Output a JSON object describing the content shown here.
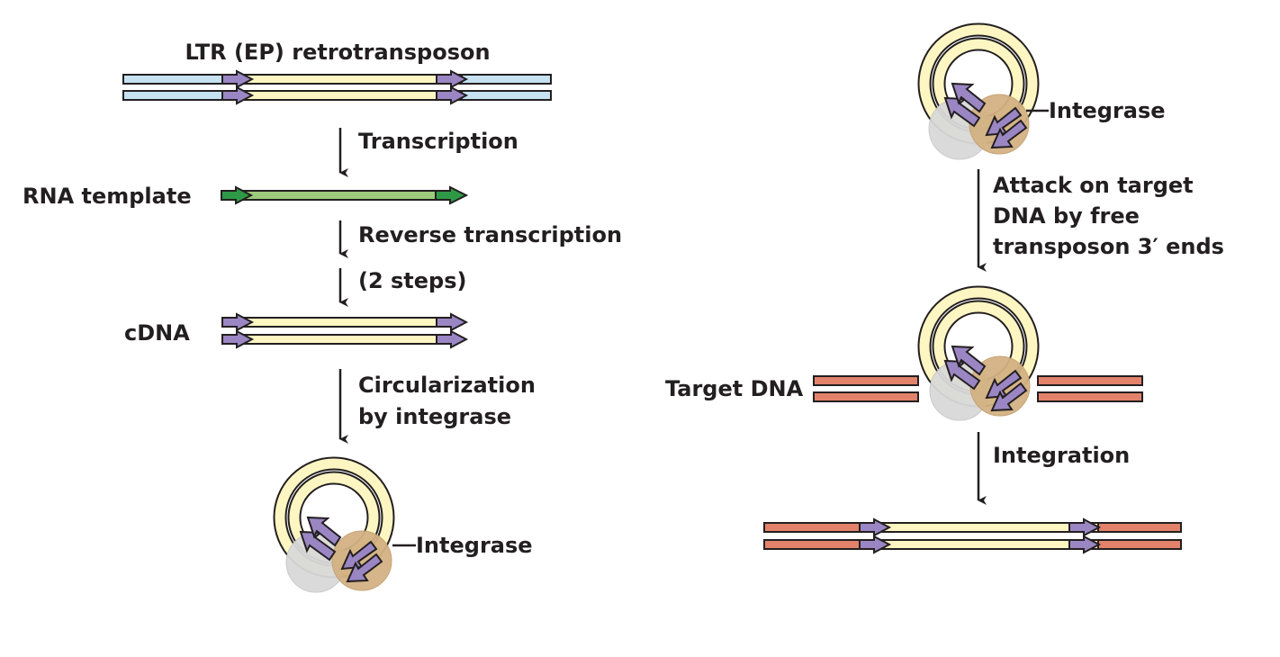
{
  "labels": {
    "title": "LTR (EP) retrotransposon",
    "transcription": "Transcription",
    "rna_template": "RNA template",
    "reverse_transcription": "Reverse transcription",
    "two_steps": "(2 steps)",
    "cdna": "cDNA",
    "circularization_1": "Circularization",
    "circularization_2": "by integrase",
    "integrase_left": "Integrase",
    "integrase_right": "Integrase",
    "attack_1": "Attack on target",
    "attack_2": "DNA by free",
    "attack_3": "transposon 3′ ends",
    "target_dna": "Target DNA",
    "integration": "Integration"
  },
  "colors": {
    "host_dna": "#c5e1f2",
    "transposon": "#fdf6c2",
    "ltr": "#9b86c4",
    "rna": "#9ccc7c",
    "rna_ltr": "#2e9a47",
    "target_dna": "#e2826b",
    "protein_gray": "#d9d9d9",
    "protein_tan": "#d3b283",
    "text": "#231f20"
  }
}
